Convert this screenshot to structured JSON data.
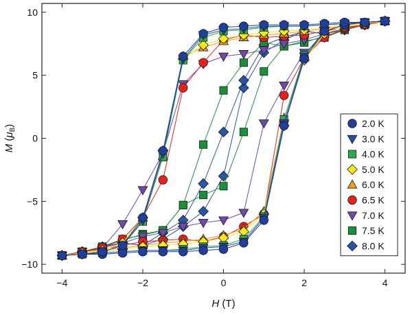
{
  "chart_data": {
    "type": "scatter",
    "xlabel": {
      "var": "H",
      "unit": " (T)"
    },
    "ylabel": {
      "var": "M",
      "unit_open": " (",
      "unit_mu": "μ",
      "unit_sub": "B",
      "unit_close": ")"
    },
    "xlim": [
      -4.5,
      4.5
    ],
    "ylim": [
      -10.7,
      10.7
    ],
    "xticks": [
      -4,
      -2,
      0,
      2,
      4
    ],
    "xtick_labels": [
      "−4",
      "−2",
      "0",
      "2",
      "4"
    ],
    "yticks": [
      -10,
      -5,
      0,
      5,
      10
    ],
    "ytick_labels": [
      "−10",
      "−5",
      "0",
      "5",
      "10"
    ],
    "grid": false,
    "legend_position": "right",
    "series": [
      {
        "name": "2.0 K",
        "color": "#1f3f9a",
        "marker": "circle",
        "up": [
          [
            -4,
            -9.3
          ],
          [
            -3.5,
            -9.2
          ],
          [
            -3,
            -9.2
          ],
          [
            -2.5,
            -9.1
          ],
          [
            -2,
            -9.0
          ],
          [
            -1.5,
            -9.0
          ],
          [
            -1,
            -9.0
          ],
          [
            -0.5,
            -8.9
          ],
          [
            0,
            -8.8
          ],
          [
            0.5,
            -8.3
          ],
          [
            1,
            -6.5
          ],
          [
            1.5,
            1.0
          ],
          [
            2,
            6.3
          ],
          [
            2.5,
            8.5
          ],
          [
            3,
            9.0
          ],
          [
            3.5,
            9.2
          ],
          [
            4,
            9.3
          ]
        ],
        "down": [
          [
            4,
            9.3
          ],
          [
            3.5,
            9.2
          ],
          [
            3,
            9.2
          ],
          [
            2.5,
            9.1
          ],
          [
            2,
            9.0
          ],
          [
            1.5,
            9.0
          ],
          [
            1,
            9.0
          ],
          [
            0.5,
            8.9
          ],
          [
            0,
            8.8
          ],
          [
            -0.5,
            8.3
          ],
          [
            -1,
            6.5
          ],
          [
            -1.5,
            -1.0
          ],
          [
            -2,
            -6.3
          ],
          [
            -2.5,
            -8.5
          ],
          [
            -3,
            -9.0
          ],
          [
            -3.5,
            -9.2
          ],
          [
            -4,
            -9.3
          ]
        ]
      },
      {
        "name": "3.0 K",
        "color": "#2b4aa8",
        "marker": "triangle-down",
        "up": [
          [
            -4,
            -9.3
          ],
          [
            -3.5,
            -9.2
          ],
          [
            -3,
            -9.1
          ],
          [
            -2.5,
            -9.0
          ],
          [
            -2,
            -8.9
          ],
          [
            -1.5,
            -8.9
          ],
          [
            -1,
            -8.9
          ],
          [
            -0.5,
            -8.7
          ],
          [
            0,
            -8.6
          ],
          [
            0.5,
            -8.2
          ],
          [
            1,
            -6.3
          ],
          [
            1.5,
            1.2
          ],
          [
            2,
            6.5
          ],
          [
            2.5,
            8.5
          ],
          [
            3,
            9.0
          ],
          [
            3.5,
            9.2
          ],
          [
            4,
            9.3
          ]
        ],
        "down": [
          [
            4,
            9.3
          ],
          [
            3.5,
            9.2
          ],
          [
            3,
            9.1
          ],
          [
            2.5,
            9.0
          ],
          [
            2,
            8.9
          ],
          [
            1.5,
            8.9
          ],
          [
            1,
            8.9
          ],
          [
            0.5,
            8.7
          ],
          [
            0,
            8.6
          ],
          [
            -0.5,
            8.2
          ],
          [
            -1,
            6.3
          ],
          [
            -1.5,
            -1.2
          ],
          [
            -2,
            -6.5
          ],
          [
            -2.5,
            -8.5
          ],
          [
            -3,
            -9.0
          ],
          [
            -3.5,
            -9.2
          ],
          [
            -4,
            -9.3
          ]
        ]
      },
      {
        "name": "4.0 K",
        "color": "#2eaa4a",
        "marker": "square",
        "up": [
          [
            -4,
            -9.3
          ],
          [
            -3.5,
            -9.2
          ],
          [
            -3,
            -9.1
          ],
          [
            -2.5,
            -9.0
          ],
          [
            -2,
            -8.9
          ],
          [
            -1.5,
            -8.9
          ],
          [
            -1,
            -8.8
          ],
          [
            -0.5,
            -8.6
          ],
          [
            0,
            -8.5
          ],
          [
            0.5,
            -8.0
          ],
          [
            1,
            -6.2
          ],
          [
            1.5,
            1.5
          ],
          [
            2,
            6.6
          ],
          [
            2.5,
            8.5
          ],
          [
            3,
            9.0
          ],
          [
            3.5,
            9.2
          ],
          [
            4,
            9.3
          ]
        ],
        "down": [
          [
            4,
            9.3
          ],
          [
            3.5,
            9.2
          ],
          [
            3,
            9.1
          ],
          [
            2.5,
            9.0
          ],
          [
            2,
            8.9
          ],
          [
            1.5,
            8.9
          ],
          [
            1,
            8.8
          ],
          [
            0.5,
            8.6
          ],
          [
            0,
            8.5
          ],
          [
            -0.5,
            8.0
          ],
          [
            -1,
            6.2
          ],
          [
            -1.5,
            -1.5
          ],
          [
            -2,
            -6.6
          ],
          [
            -2.5,
            -8.5
          ],
          [
            -3,
            -9.0
          ],
          [
            -3.5,
            -9.2
          ],
          [
            -4,
            -9.3
          ]
        ]
      },
      {
        "name": "5.0 K",
        "color": "#f2ea1a",
        "marker": "diamond",
        "up": [
          [
            -4,
            -9.3
          ],
          [
            -3.5,
            -9.1
          ],
          [
            -3,
            -9.0
          ],
          [
            -2.5,
            -8.8
          ],
          [
            -2,
            -8.6
          ],
          [
            -1.5,
            -8.5
          ],
          [
            -1,
            -8.4
          ],
          [
            -0.5,
            -8.2
          ],
          [
            0,
            -7.9
          ],
          [
            0.5,
            -7.4
          ],
          [
            1,
            -6.0
          ],
          [
            1.5,
            1.0
          ],
          [
            2,
            6.2
          ],
          [
            2.5,
            8.3
          ],
          [
            3,
            8.9
          ],
          [
            3.5,
            9.1
          ],
          [
            4,
            9.3
          ]
        ],
        "down": [
          [
            4,
            9.3
          ],
          [
            3.5,
            9.1
          ],
          [
            3,
            9.0
          ],
          [
            2.5,
            8.8
          ],
          [
            2,
            8.6
          ],
          [
            1.5,
            8.5
          ],
          [
            1,
            8.4
          ],
          [
            0.5,
            8.2
          ],
          [
            0,
            7.9
          ],
          [
            -0.5,
            7.4
          ],
          [
            -1,
            6.3
          ],
          [
            -1.5,
            -1.0
          ],
          [
            -2,
            -6.3
          ],
          [
            -2.5,
            -8.3
          ],
          [
            -3,
            -8.9
          ],
          [
            -3.5,
            -9.1
          ],
          [
            -4,
            -9.3
          ]
        ]
      },
      {
        "name": "6.0 K",
        "color": "#f19a1c",
        "marker": "triangle-up",
        "up": [
          [
            -4,
            -9.3
          ],
          [
            -3.5,
            -9.1
          ],
          [
            -3,
            -8.9
          ],
          [
            -2.5,
            -8.7
          ],
          [
            -2,
            -8.5
          ],
          [
            -1.5,
            -8.3
          ],
          [
            -1,
            -8.2
          ],
          [
            -0.5,
            -8.0
          ],
          [
            0,
            -7.7
          ],
          [
            0.5,
            -7.2
          ],
          [
            1,
            -5.8
          ],
          [
            1.5,
            1.6
          ],
          [
            2,
            6.4
          ],
          [
            2.5,
            8.3
          ],
          [
            3,
            8.9
          ],
          [
            3.5,
            9.1
          ],
          [
            4,
            9.3
          ]
        ],
        "down": [
          [
            4,
            9.3
          ],
          [
            3.5,
            9.1
          ],
          [
            3,
            8.9
          ],
          [
            2.5,
            8.7
          ],
          [
            2,
            8.5
          ],
          [
            1.5,
            8.3
          ],
          [
            1,
            8.2
          ],
          [
            0.5,
            8.0
          ],
          [
            0,
            7.7
          ],
          [
            -0.5,
            7.2
          ],
          [
            -1,
            6.5
          ],
          [
            -1.5,
            -1.4
          ],
          [
            -2,
            -6.3
          ],
          [
            -2.5,
            -8.3
          ],
          [
            -3,
            -8.9
          ],
          [
            -3.5,
            -9.1
          ],
          [
            -4,
            -9.3
          ]
        ]
      },
      {
        "name": "6.5 K",
        "color": "#e8211d",
        "marker": "circle",
        "up": [
          [
            -4,
            -9.3
          ],
          [
            -3.5,
            -9.0
          ],
          [
            -3,
            -8.8
          ],
          [
            -2.5,
            -8.5
          ],
          [
            -2,
            -8.2
          ],
          [
            -1.5,
            -8.1
          ],
          [
            -1,
            -8.0
          ],
          [
            -0.5,
            -8.2
          ],
          [
            0,
            -7.8
          ],
          [
            0.5,
            -7.0
          ],
          [
            1,
            -6.0
          ],
          [
            1.5,
            3.4
          ],
          [
            2,
            6.4
          ],
          [
            2.5,
            8.0
          ],
          [
            3,
            8.7
          ],
          [
            3.5,
            9.0
          ],
          [
            4,
            9.3
          ]
        ],
        "down": [
          [
            4,
            9.3
          ],
          [
            3.5,
            9.0
          ],
          [
            3,
            8.8
          ],
          [
            2.5,
            8.5
          ],
          [
            2,
            8.2
          ],
          [
            1.5,
            8.1
          ],
          [
            1,
            8.0
          ],
          [
            0.5,
            8.2
          ],
          [
            0,
            7.8
          ],
          [
            -0.5,
            6.0
          ],
          [
            -1,
            4.0
          ],
          [
            -1.5,
            -3.3
          ],
          [
            -2,
            -6.3
          ],
          [
            -2.5,
            -8.0
          ],
          [
            -3,
            -8.7
          ],
          [
            -3.5,
            -9.0
          ],
          [
            -4,
            -9.3
          ]
        ]
      },
      {
        "name": "7.0 K",
        "color": "#6f4aa8",
        "marker": "triangle-down",
        "up": [
          [
            -4,
            -9.3
          ],
          [
            -3.5,
            -9.0
          ],
          [
            -3,
            -8.7
          ],
          [
            -2.5,
            -8.3
          ],
          [
            -2,
            -7.8
          ],
          [
            -1.5,
            -7.5
          ],
          [
            -1,
            -7.0
          ],
          [
            -0.5,
            -6.7
          ],
          [
            0,
            -6.5
          ],
          [
            0.5,
            -5.9
          ],
          [
            1,
            1.2
          ],
          [
            1.5,
            4.2
          ],
          [
            2,
            6.8
          ],
          [
            2.5,
            8.0
          ],
          [
            3,
            8.7
          ],
          [
            3.5,
            9.0
          ],
          [
            4,
            9.3
          ]
        ],
        "down": [
          [
            4,
            9.3
          ],
          [
            3.5,
            9.0
          ],
          [
            3,
            8.7
          ],
          [
            2.5,
            8.3
          ],
          [
            2,
            7.8
          ],
          [
            1.5,
            7.5
          ],
          [
            1,
            7.0
          ],
          [
            0.5,
            6.7
          ],
          [
            0,
            6.5
          ],
          [
            -0.5,
            5.9
          ],
          [
            -1,
            4.3
          ],
          [
            -1.5,
            -1.2
          ],
          [
            -2,
            -4.1
          ],
          [
            -2.5,
            -6.8
          ],
          [
            -3,
            -8.7
          ],
          [
            -3.5,
            -9.0
          ],
          [
            -4,
            -9.3
          ]
        ]
      },
      {
        "name": "7.5 K",
        "color": "#1c8f3b",
        "marker": "square",
        "up": [
          [
            -4,
            -9.3
          ],
          [
            -3.5,
            -9.0
          ],
          [
            -3,
            -8.6
          ],
          [
            -2.5,
            -8.1
          ],
          [
            -2,
            -7.6
          ],
          [
            -1.5,
            -7.3
          ],
          [
            -1,
            -5.3
          ],
          [
            -0.5,
            -4.5
          ],
          [
            0,
            -3.8
          ],
          [
            0.5,
            0.5
          ],
          [
            1,
            5.3
          ],
          [
            1.5,
            7.3
          ],
          [
            2,
            7.7
          ],
          [
            2.5,
            8.0
          ],
          [
            3,
            8.6
          ],
          [
            3.5,
            9.0
          ],
          [
            4,
            9.3
          ]
        ],
        "down": [
          [
            4,
            9.3
          ],
          [
            3.5,
            9.0
          ],
          [
            3,
            8.6
          ],
          [
            2.5,
            8.1
          ],
          [
            2,
            7.6
          ],
          [
            1.5,
            7.3
          ],
          [
            1,
            7.6
          ],
          [
            0.5,
            6.0
          ],
          [
            0,
            3.8
          ],
          [
            -0.5,
            -0.5
          ],
          [
            -1,
            -5.3
          ],
          [
            -1.5,
            -7.3
          ],
          [
            -2,
            -7.7
          ],
          [
            -2.5,
            -8.0
          ],
          [
            -3,
            -8.6
          ],
          [
            -3.5,
            -9.0
          ],
          [
            -4,
            -9.3
          ]
        ]
      },
      {
        "name": "8.0 K",
        "color": "#2a55a6",
        "marker": "diamond",
        "up": [
          [
            -4,
            -9.3
          ],
          [
            -3.5,
            -9.0
          ],
          [
            -3,
            -8.6
          ],
          [
            -2.5,
            -8.3
          ],
          [
            -2,
            -8.5
          ],
          [
            -1.5,
            -8.0
          ],
          [
            -1,
            -7.0
          ],
          [
            -0.5,
            -5.8
          ],
          [
            0,
            -3.0
          ],
          [
            0.5,
            4.0
          ],
          [
            1,
            6.8
          ],
          [
            1.5,
            7.8
          ],
          [
            2,
            8.5
          ],
          [
            2.5,
            8.3
          ],
          [
            3,
            8.6
          ],
          [
            3.5,
            9.0
          ],
          [
            4,
            9.3
          ]
        ],
        "down": [
          [
            4,
            9.3
          ],
          [
            3.5,
            9.0
          ],
          [
            3,
            8.6
          ],
          [
            2.5,
            8.3
          ],
          [
            2,
            8.5
          ],
          [
            1.5,
            8.0
          ],
          [
            1,
            7.4
          ],
          [
            0.5,
            4.6
          ],
          [
            0,
            0.5
          ],
          [
            -0.5,
            -3.6
          ],
          [
            -1,
            -6.5
          ],
          [
            -1.5,
            -7.5
          ],
          [
            -2,
            -8.5
          ],
          [
            -2.5,
            -8.3
          ],
          [
            -3,
            -8.6
          ],
          [
            -3.5,
            -9.0
          ],
          [
            -4,
            -9.3
          ]
        ]
      }
    ]
  }
}
